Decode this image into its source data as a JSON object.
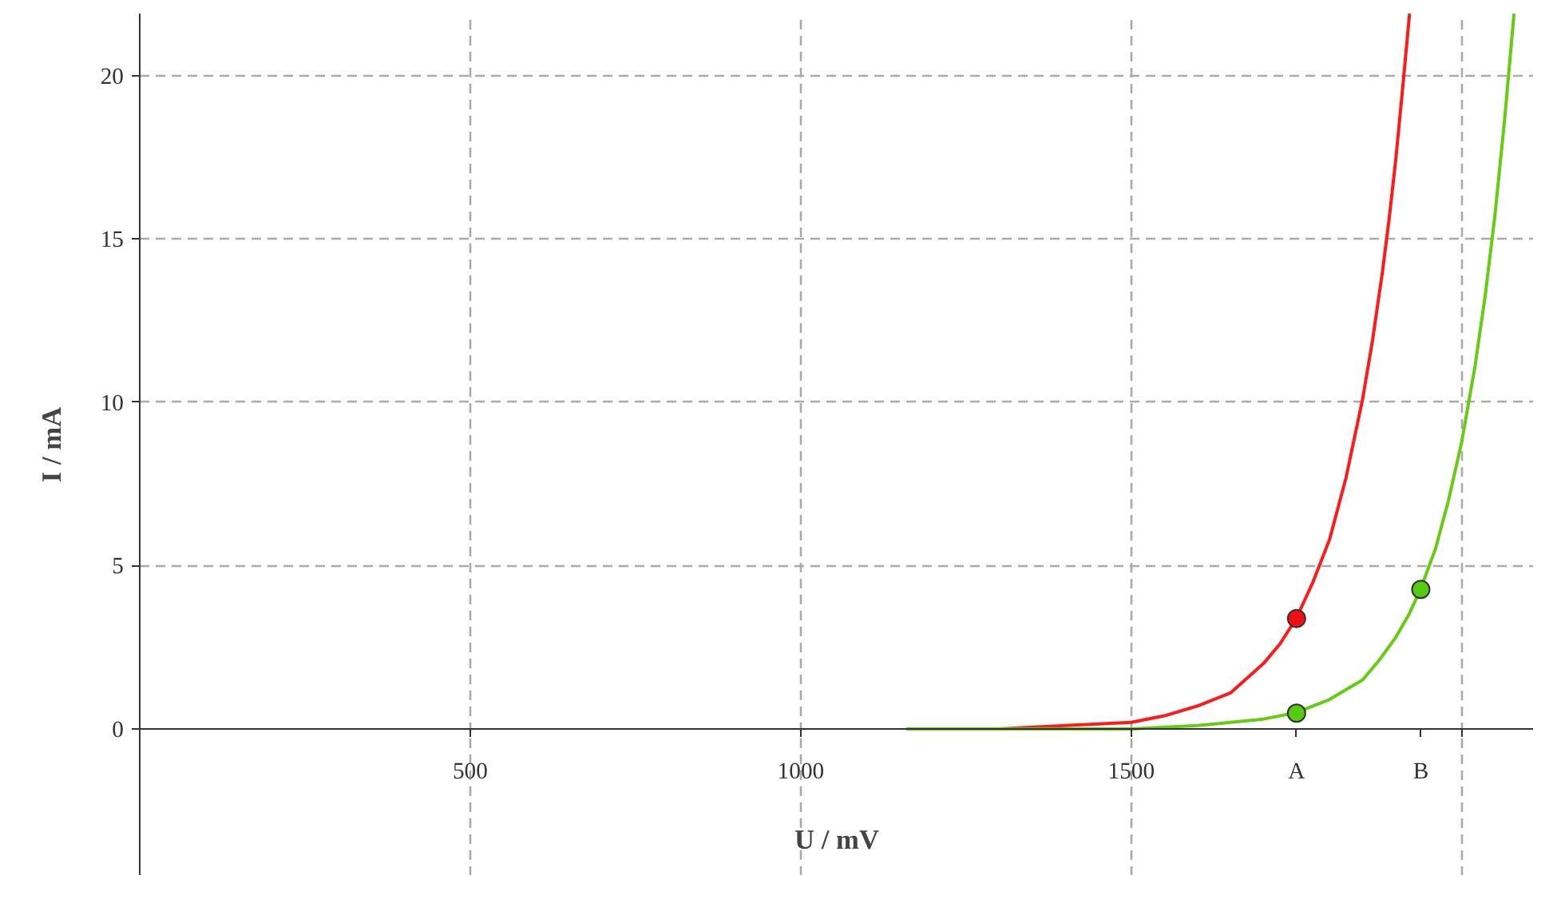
{
  "chart_data": {
    "type": "line",
    "xlabel": "U / mV",
    "ylabel": "I / mA",
    "xlim": [
      0,
      2109
    ],
    "ylim": [
      -4.5,
      21.9
    ],
    "xticks": [
      500,
      1000,
      1500,
      {
        "value": 1750,
        "label": "A"
      },
      {
        "value": 1938,
        "label": "B"
      },
      {
        "value": 2000,
        "label": null
      }
    ],
    "yticks": [
      0,
      5,
      10,
      15,
      20
    ],
    "grid": true,
    "series": [
      {
        "color": "#ff1a1a",
        "x": [
          1160,
          1300,
          1400,
          1500,
          1550,
          1600,
          1650,
          1700,
          1725,
          1750,
          1775,
          1800,
          1825,
          1850,
          1865,
          1880,
          1890,
          1900,
          1910,
          1921
        ],
        "values": [
          0,
          0,
          0.1,
          0.2,
          0.4,
          0.7,
          1.1,
          2.0,
          2.6,
          3.4,
          4.5,
          5.8,
          7.7,
          10.1,
          11.9,
          14.0,
          15.6,
          17.4,
          19.5,
          21.9
        ]
      },
      {
        "color": "#66cc11",
        "x": [
          1160,
          1300,
          1400,
          1500,
          1600,
          1650,
          1700,
          1750,
          1800,
          1850,
          1875,
          1900,
          1920,
          1938,
          1960,
          1980,
          2000,
          2020,
          2035,
          2050,
          2065,
          2079
        ],
        "values": [
          0,
          0,
          0,
          0,
          0.1,
          0.2,
          0.3,
          0.5,
          0.9,
          1.5,
          2.1,
          2.8,
          3.5,
          4.3,
          5.5,
          7.0,
          8.8,
          11.1,
          13.2,
          15.7,
          18.7,
          21.9
        ]
      },
      {
        "type": "scatter",
        "color": "#ee1111",
        "marker": "circle",
        "x": [
          1750
        ],
        "values": [
          3.38
        ]
      },
      {
        "type": "scatter",
        "color": "#55cc11",
        "marker": "circle",
        "x": [
          1750,
          1938
        ],
        "values": [
          0.48,
          4.27
        ]
      }
    ]
  }
}
